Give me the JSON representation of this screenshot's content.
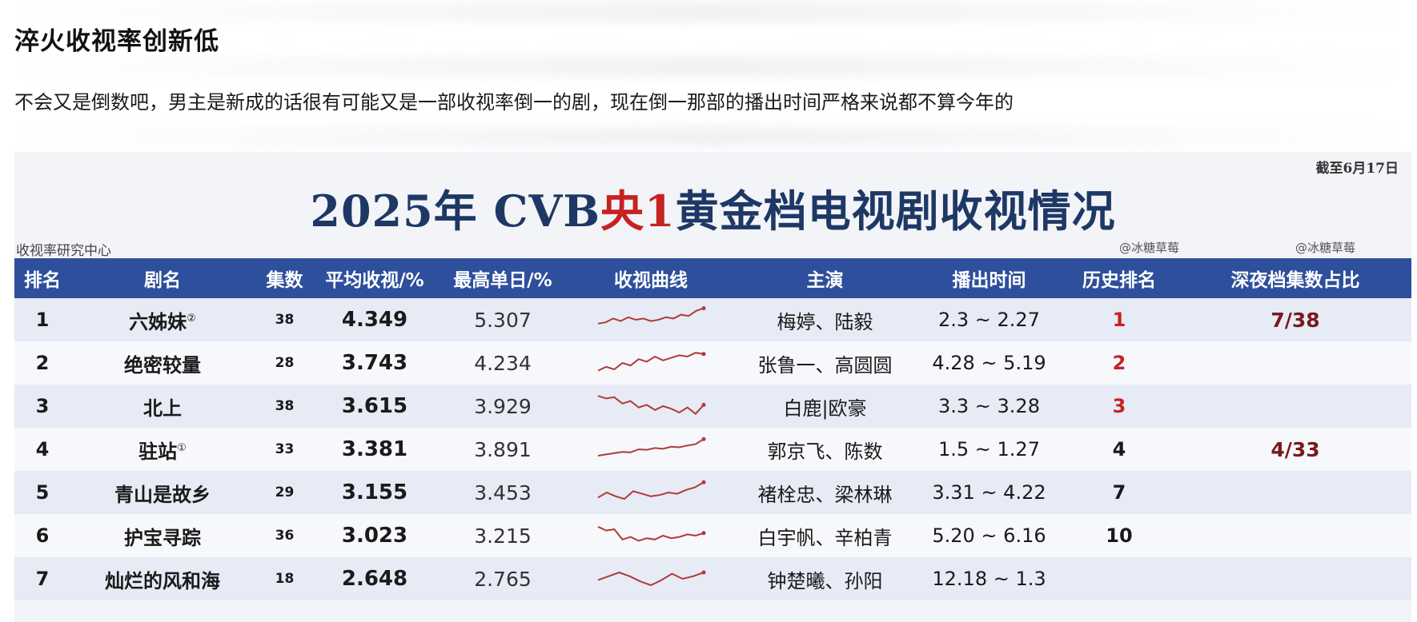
{
  "post": {
    "title": "淬火收视率创新低",
    "body": "不会又是倒数吧，男主是新成的话很有可能又是一部收视率倒一的剧，现在倒一那部的播出时间严格来说都不算今年的"
  },
  "image": {
    "as_of": "截至6月17日",
    "title_prefix": "2025年 CVB",
    "title_highlight": "央1",
    "title_suffix": "黄金档电视剧收视情况",
    "source": "收视率研究中心",
    "watermark": "@冰糖草莓",
    "colors": {
      "header_bg": "#2e4f9b",
      "title_blue": "#1e3866",
      "accent_red": "#c62222",
      "curve": "#b23a3a"
    },
    "columns": [
      "排名",
      "剧名",
      "集数",
      "平均收视/%",
      "最高单日/%",
      "收视曲线",
      "主演",
      "播出时间",
      "历史排名",
      "深夜档集数占比"
    ],
    "rows": [
      {
        "rank": "1",
        "name": "六姊妹",
        "mark": "②",
        "eps": "38",
        "avg": "4.349",
        "max": "5.307",
        "curve": [
          0.35,
          0.4,
          0.55,
          0.45,
          0.6,
          0.5,
          0.55,
          0.45,
          0.5,
          0.6,
          0.55,
          0.7,
          0.65,
          0.85,
          0.95
        ],
        "cast": "梅婷、陆毅",
        "air": "2.3 ~ 2.27",
        "hist": "1",
        "hist_red": true,
        "late": "7/38"
      },
      {
        "rank": "2",
        "name": "绝密较量",
        "mark": "",
        "eps": "28",
        "avg": "3.743",
        "max": "4.234",
        "curve": [
          0.2,
          0.35,
          0.25,
          0.5,
          0.4,
          0.65,
          0.55,
          0.75,
          0.6,
          0.7,
          0.8,
          0.75,
          0.9,
          0.85
        ],
        "cast": "张鲁一、高圆圆",
        "air": "4.28 ~ 5.19",
        "hist": "2",
        "hist_red": true,
        "late": ""
      },
      {
        "rank": "3",
        "name": "北上",
        "mark": "",
        "eps": "38",
        "avg": "3.615",
        "max": "3.929",
        "curve": [
          0.9,
          0.8,
          0.85,
          0.6,
          0.7,
          0.45,
          0.55,
          0.35,
          0.5,
          0.4,
          0.25,
          0.45,
          0.2,
          0.55
        ],
        "cast": "白鹿|欧豪",
        "air": "3.3 ~ 3.28",
        "hist": "3",
        "hist_red": true,
        "late": ""
      },
      {
        "rank": "4",
        "name": "驻站",
        "mark": "①",
        "eps": "33",
        "avg": "3.381",
        "max": "3.891",
        "curve": [
          0.25,
          0.3,
          0.35,
          0.4,
          0.38,
          0.5,
          0.48,
          0.55,
          0.52,
          0.6,
          0.58,
          0.65,
          0.7,
          0.9
        ],
        "cast": "郭京飞、陈数",
        "air": "1.5 ~ 1.27",
        "hist": "4",
        "hist_red": false,
        "late": "4/33"
      },
      {
        "rank": "5",
        "name": "青山是故乡",
        "mark": "",
        "eps": "29",
        "avg": "3.155",
        "max": "3.453",
        "curve": [
          0.3,
          0.5,
          0.35,
          0.25,
          0.55,
          0.45,
          0.35,
          0.4,
          0.5,
          0.45,
          0.6,
          0.7,
          0.9
        ],
        "cast": "褚栓忠、梁林琳",
        "air": "3.31 ~ 4.22",
        "hist": "7",
        "hist_red": false,
        "late": ""
      },
      {
        "rank": "6",
        "name": "护宝寻踪",
        "mark": "",
        "eps": "36",
        "avg": "3.023",
        "max": "3.215",
        "curve": [
          0.85,
          0.7,
          0.75,
          0.35,
          0.45,
          0.3,
          0.4,
          0.35,
          0.5,
          0.4,
          0.45,
          0.55,
          0.5,
          0.6
        ],
        "cast": "白宇帆、辛柏青",
        "air": "5.20 ~ 6.16",
        "hist": "10",
        "hist_red": false,
        "late": ""
      },
      {
        "rank": "7",
        "name": "灿烂的风和海",
        "mark": "",
        "eps": "18",
        "avg": "2.648",
        "max": "2.765",
        "curve": [
          0.45,
          0.6,
          0.75,
          0.6,
          0.4,
          0.25,
          0.45,
          0.7,
          0.5,
          0.6,
          0.75
        ],
        "cast": "钟楚曦、孙阳",
        "air": "12.18 ~ 1.3",
        "hist": "",
        "hist_red": false,
        "late": ""
      }
    ]
  }
}
